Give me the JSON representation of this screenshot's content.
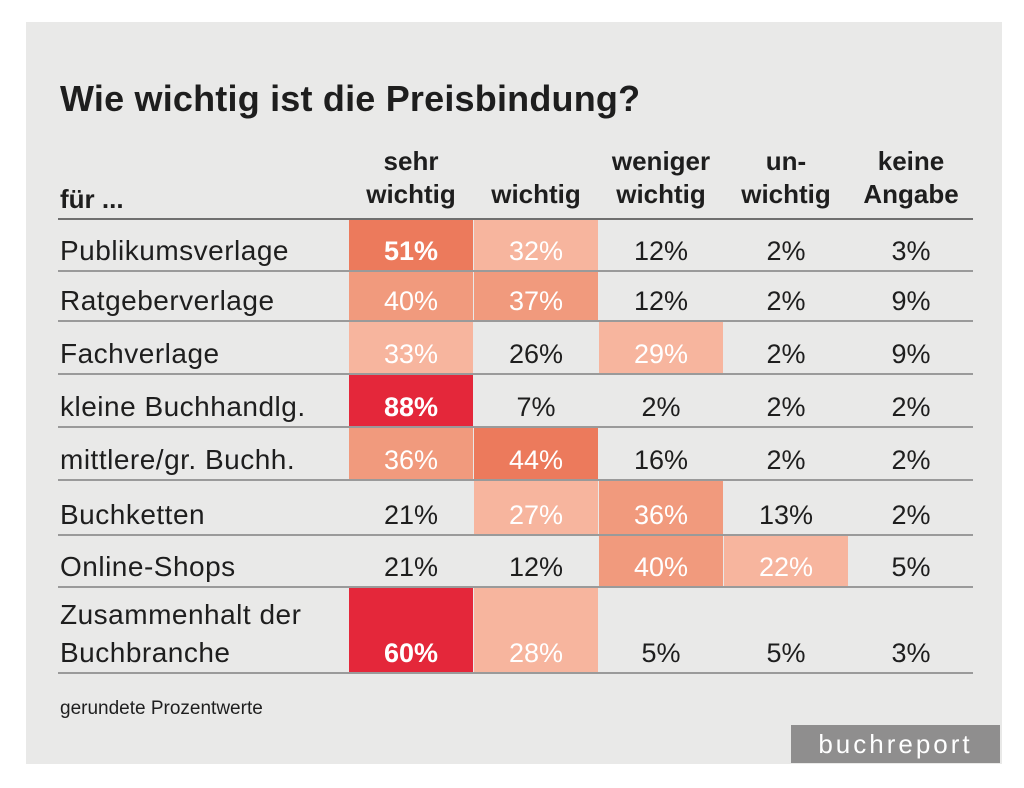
{
  "title": "Wie wichtig ist die Preisbindung?",
  "row_header": "für ...",
  "columns": [
    [
      "sehr",
      "wichtig"
    ],
    [
      "",
      "wichtig"
    ],
    [
      "weniger",
      "wichtig"
    ],
    [
      "un-",
      "wichtig"
    ],
    [
      "keine",
      "Angabe"
    ]
  ],
  "footnote": "gerundete Prozentwerte",
  "brand": "buchreport",
  "colors": {
    "background": "#e9e9e8",
    "scale": [
      "#f7b59e",
      "#f19a7d",
      "#ec7a5c",
      "#e4273a"
    ]
  },
  "chart_data": {
    "type": "table",
    "title": "Wie wichtig ist die Preisbindung?",
    "categories": [
      "sehr wichtig",
      "wichtig",
      "weniger wichtig",
      "unwichtig",
      "keine Angabe"
    ],
    "rows": [
      {
        "label": [
          "Publikumsverlage"
        ],
        "values": [
          "51%",
          "32%",
          "12%",
          "2%",
          "3%"
        ],
        "shade": [
          3,
          1,
          0,
          0,
          0
        ]
      },
      {
        "label": [
          "Ratgeberverlage"
        ],
        "values": [
          "40%",
          "37%",
          "12%",
          "2%",
          "9%"
        ],
        "shade": [
          2,
          2,
          0,
          0,
          0
        ]
      },
      {
        "label": [
          "Fachverlage"
        ],
        "values": [
          "33%",
          "26%",
          "29%",
          "2%",
          "9%"
        ],
        "shade": [
          1,
          0,
          1,
          0,
          0
        ]
      },
      {
        "label": [
          "kleine Buchhandlg."
        ],
        "values": [
          "88%",
          "7%",
          "2%",
          "2%",
          "2%"
        ],
        "shade": [
          4,
          0,
          0,
          0,
          0
        ]
      },
      {
        "label": [
          "mittlere/gr. Buchh."
        ],
        "values": [
          "36%",
          "44%",
          "16%",
          "2%",
          "2%"
        ],
        "shade": [
          2,
          3,
          0,
          0,
          0
        ]
      },
      {
        "label": [
          "Buchketten"
        ],
        "values": [
          "21%",
          "27%",
          "36%",
          "13%",
          "2%"
        ],
        "shade": [
          0,
          1,
          2,
          0,
          0
        ]
      },
      {
        "label": [
          "Online-Shops"
        ],
        "values": [
          "21%",
          "12%",
          "40%",
          "22%",
          "5%"
        ],
        "shade": [
          0,
          0,
          2,
          1,
          0
        ]
      },
      {
        "label": [
          "Zusammenhalt der",
          "Buchbranche"
        ],
        "values": [
          "60%",
          "28%",
          "5%",
          "5%",
          "3%"
        ],
        "shade": [
          4,
          1,
          0,
          0,
          0
        ]
      }
    ]
  }
}
